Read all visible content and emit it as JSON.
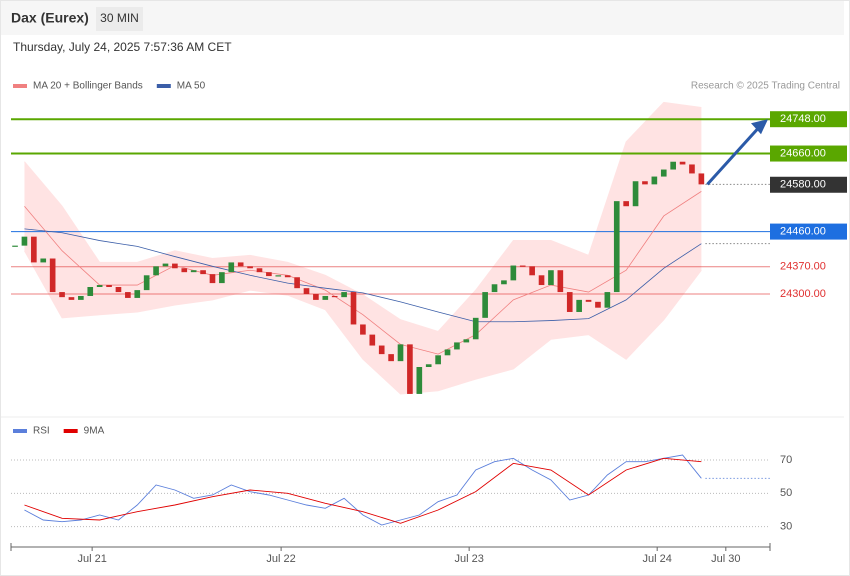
{
  "header": {
    "title": "Dax (Eurex)",
    "interval": "30 MIN",
    "timestamp": "Thursday, July 24, 2025 7:57:36 AM CET"
  },
  "chart_data": [
    {
      "type": "candlestick",
      "credit": "Research © 2025 Trading Central",
      "close": [
        24424,
        24447,
        24381,
        24391,
        24305,
        24292,
        24285,
        24295,
        24318,
        24323,
        24318,
        24305,
        24290,
        24310,
        24348,
        24371,
        24378,
        24366,
        24356,
        24361,
        24351,
        24328,
        24356,
        24381,
        24371,
        24366,
        24356,
        24346,
        24348,
        24343,
        24315,
        24300,
        24285,
        24295,
        24292,
        24305,
        24222,
        24196,
        24168,
        24146,
        24128,
        24171,
        24044,
        24113,
        24120,
        24143,
        24158,
        24176,
        24184,
        24239,
        24305,
        24325,
        24335,
        24373,
        24371,
        24348,
        24323,
        24361,
        24305,
        24254,
        24285,
        24280,
        24265,
        24305,
        24538,
        24525,
        24589,
        24581,
        24601,
        24619,
        24639,
        24632,
        24609,
        24581
      ],
      "up_color": "#2e8b3a",
      "down_color": "#d02828",
      "series": [
        {
          "name": "MA 20 + Bollinger Bands",
          "color": "#f08080",
          "band_color": "#ffe3e3",
          "x": [
            1,
            5,
            9,
            13,
            17,
            21,
            25,
            29,
            33,
            37,
            41,
            45,
            49,
            53,
            57,
            61,
            65,
            69,
            73
          ],
          "values": [
            24525,
            24411,
            24323,
            24323,
            24373,
            24348,
            24361,
            24348,
            24310,
            24247,
            24171,
            24146,
            24196,
            24285,
            24323,
            24305,
            24361,
            24500,
            24563
          ],
          "upper": [
            24639,
            24525,
            24381,
            24381,
            24411,
            24391,
            24399,
            24381,
            24348,
            24298,
            24234,
            24204,
            24310,
            24437,
            24437,
            24399,
            24690,
            24791,
            24778
          ],
          "lower": [
            24411,
            24239,
            24247,
            24254,
            24272,
            24285,
            24310,
            24297,
            24260,
            24133,
            24044,
            24052,
            24082,
            24108,
            24184,
            24196,
            24133,
            24234,
            24361
          ]
        },
        {
          "name": "MA 50",
          "color": "#3b5ea8",
          "x": [
            1,
            5,
            9,
            13,
            17,
            21,
            25,
            29,
            33,
            37,
            41,
            45,
            49,
            53,
            57,
            61,
            65,
            69,
            73
          ],
          "values": [
            24467,
            24457,
            24437,
            24422,
            24396,
            24371,
            24348,
            24328,
            24315,
            24303,
            24280,
            24254,
            24229,
            24229,
            24232,
            24237,
            24285,
            24366,
            24429
          ]
        }
      ],
      "levels": [
        {
          "value": 24748,
          "label": "24748.00",
          "color": "#5aa700",
          "tag": true
        },
        {
          "value": 24660,
          "label": "24660.00",
          "color": "#5aa700",
          "tag": true
        },
        {
          "value": 24580,
          "label": "24580.00",
          "color": "#333333",
          "tag": true
        },
        {
          "value": 24460,
          "label": "24460.00",
          "color": "#1e6fe0",
          "tag": true
        },
        {
          "value": 24370,
          "label": "24370.00",
          "color": "#e03030",
          "tag": false
        },
        {
          "value": 24300,
          "label": "24300.00",
          "color": "#e03030",
          "tag": false
        }
      ],
      "xlim": [
        -0.43,
        80.3
      ],
      "ylim": [
        23990,
        24810
      ]
    },
    {
      "type": "line",
      "series": [
        {
          "name": "RSI",
          "color": "#5b7fdb",
          "x": [
            1,
            3,
            5,
            7,
            9,
            11,
            13,
            15,
            17,
            19,
            21,
            23,
            25,
            27,
            29,
            31,
            33,
            35,
            37,
            39,
            41,
            43,
            45,
            47,
            49,
            51,
            53,
            55,
            57,
            59,
            61,
            63,
            65,
            67,
            69,
            71,
            73
          ],
          "values": [
            40,
            34,
            33,
            34,
            37,
            34,
            43,
            55,
            52,
            47,
            49,
            55,
            51,
            49,
            46,
            43,
            41,
            47,
            37,
            31,
            34,
            37,
            45,
            49,
            64,
            69,
            71,
            64,
            58,
            46,
            49,
            61,
            69,
            69,
            71,
            73,
            59
          ]
        },
        {
          "name": "9MA",
          "color": "#e00000",
          "x": [
            1,
            5,
            9,
            13,
            17,
            21,
            25,
            29,
            33,
            37,
            41,
            45,
            49,
            53,
            57,
            61,
            65,
            69,
            73
          ],
          "values": [
            43,
            35,
            34,
            39,
            43,
            48,
            52,
            50,
            44,
            39,
            32,
            40,
            51,
            68,
            64,
            49,
            64,
            71,
            69
          ]
        }
      ],
      "xlim": [
        -0.43,
        80.3
      ],
      "ylim": [
        19,
        79
      ],
      "yticks": [
        30,
        50,
        70
      ],
      "xticks": [
        {
          "value": 8.2,
          "label": "Jul 21"
        },
        {
          "value": 28.3,
          "label": "Jul 22"
        },
        {
          "value": 48.3,
          "label": "Jul 23"
        },
        {
          "value": 68.3,
          "label": "Jul 24"
        },
        {
          "value": 75.6,
          "label": "Jul 30"
        }
      ]
    }
  ]
}
